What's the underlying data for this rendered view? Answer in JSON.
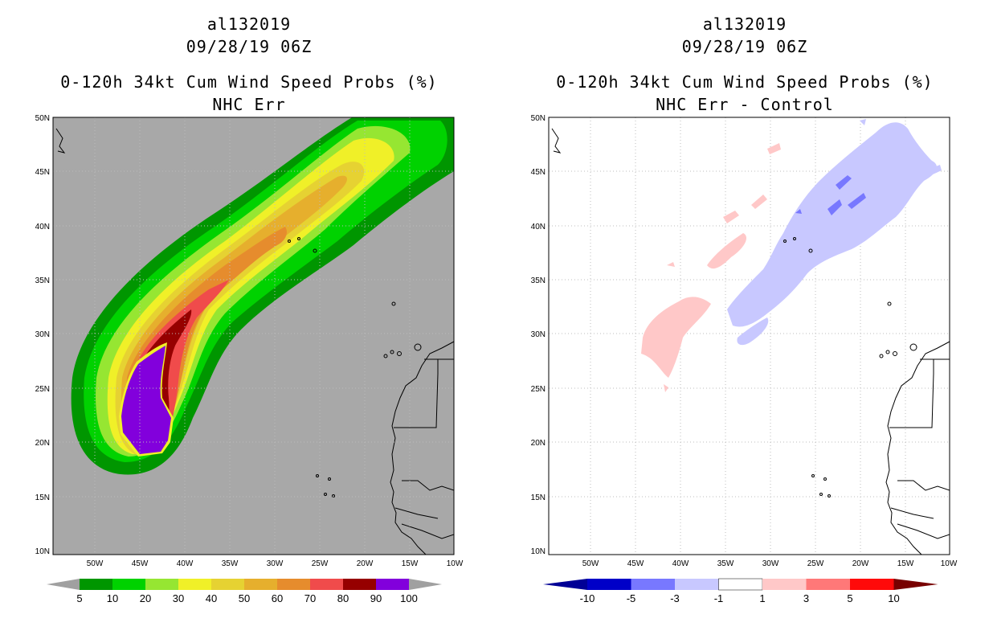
{
  "left": {
    "storm": "al132019",
    "datetime": "09/28/19 06Z",
    "product": "0-120h 34kt Cum Wind Speed Probs (%)",
    "subtitle": "NHC Err",
    "lat_labels": [
      "50N",
      "45N",
      "40N",
      "35N",
      "30N",
      "25N",
      "20N",
      "15N",
      "10N"
    ],
    "lon_labels": [
      "50W",
      "45W",
      "40W",
      "35W",
      "30W",
      "25W",
      "20W",
      "15W",
      "10W"
    ],
    "colorbar": {
      "labels": [
        "5",
        "10",
        "20",
        "30",
        "40",
        "50",
        "60",
        "70",
        "80",
        "90",
        "100"
      ],
      "colors": [
        "#009600",
        "#00d200",
        "#96e632",
        "#f0f028",
        "#e6d232",
        "#e6af2d",
        "#e68c2d",
        "#f04b4b",
        "#960000",
        "#8200dc"
      ],
      "end_color": "#a0a0a0"
    }
  },
  "right": {
    "storm": "al132019",
    "datetime": "09/28/19 06Z",
    "product": "0-120h 34kt Cum Wind Speed Probs (%)",
    "subtitle": "NHC Err - Control",
    "lat_labels": [
      "50N",
      "45N",
      "40N",
      "35N",
      "30N",
      "25N",
      "20N",
      "15N",
      "10N"
    ],
    "lon_labels": [
      "50W",
      "45W",
      "40W",
      "35W",
      "30W",
      "25W",
      "20W",
      "15W",
      "10W"
    ],
    "colorbar": {
      "labels": [
        "-10",
        "-5",
        "-3",
        "-1",
        "1",
        "3",
        "5",
        "10"
      ],
      "colors": [
        "#0000c8",
        "#0a0aff",
        "#7878ff",
        "#c8c8ff",
        "#ffffff",
        "#ffc8c8",
        "#ff7878",
        "#ff0a0a",
        "#b40000"
      ],
      "low_end": "#000096",
      "high_end": "#780000"
    }
  },
  "colors": {
    "land_background": "#a8a8a8",
    "grid": "#bdbdbd"
  }
}
